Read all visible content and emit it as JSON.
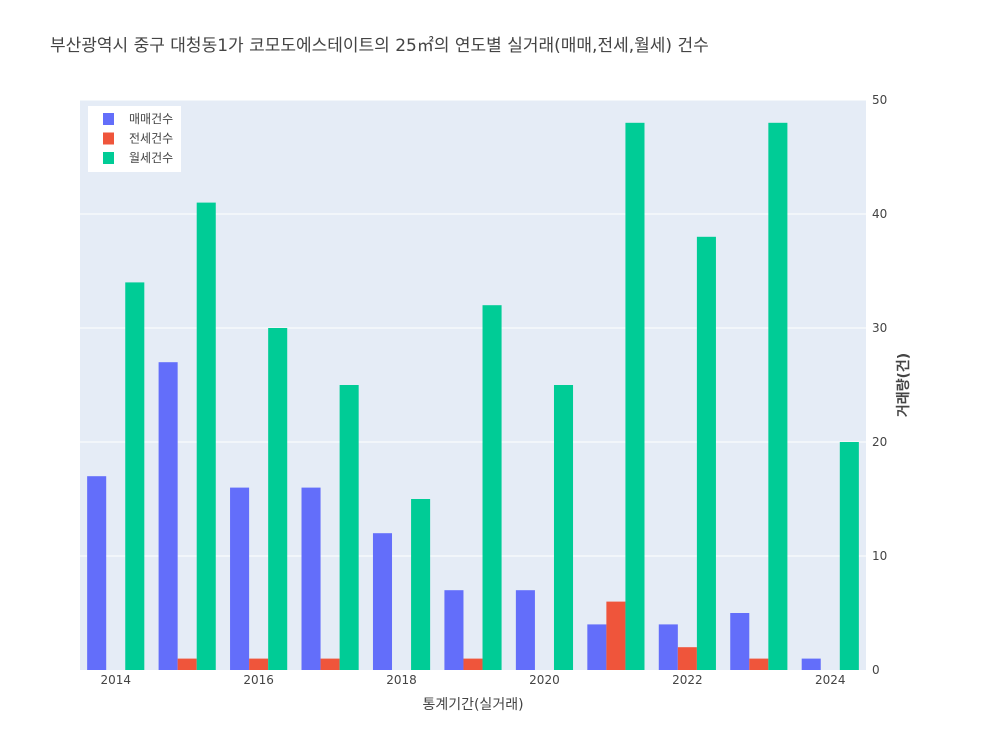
{
  "chart_data": {
    "type": "bar",
    "title": "부산광역시 중구 대청동1가 코모도에스테이트의 25㎡의 연도별 실거래(매매,전세,월세) 건수",
    "xlabel": "통계기간(실거래)",
    "ylabel": "거래량(건)",
    "x": [
      2014,
      2015,
      2016,
      2017,
      2018,
      2019,
      2020,
      2021,
      2022,
      2023,
      2024
    ],
    "x_ticks": [
      2014,
      2016,
      2018,
      2020,
      2022,
      2024
    ],
    "ylim": [
      0,
      50
    ],
    "y_ticks": [
      0,
      10,
      20,
      30,
      40,
      50
    ],
    "y_axis_side": "right",
    "legend_position": "top-left",
    "series": [
      {
        "name": "매매건수",
        "color": "#636efa",
        "values": [
          17,
          27,
          16,
          16,
          12,
          7,
          7,
          4,
          4,
          5,
          1
        ]
      },
      {
        "name": "전세건수",
        "color": "#ef553b",
        "values": [
          0,
          1,
          1,
          1,
          0,
          1,
          0,
          6,
          2,
          1,
          0
        ]
      },
      {
        "name": "월세건수",
        "color": "#00cc96",
        "values": [
          34,
          41,
          30,
          25,
          15,
          32,
          25,
          48,
          38,
          48,
          20
        ]
      }
    ]
  }
}
